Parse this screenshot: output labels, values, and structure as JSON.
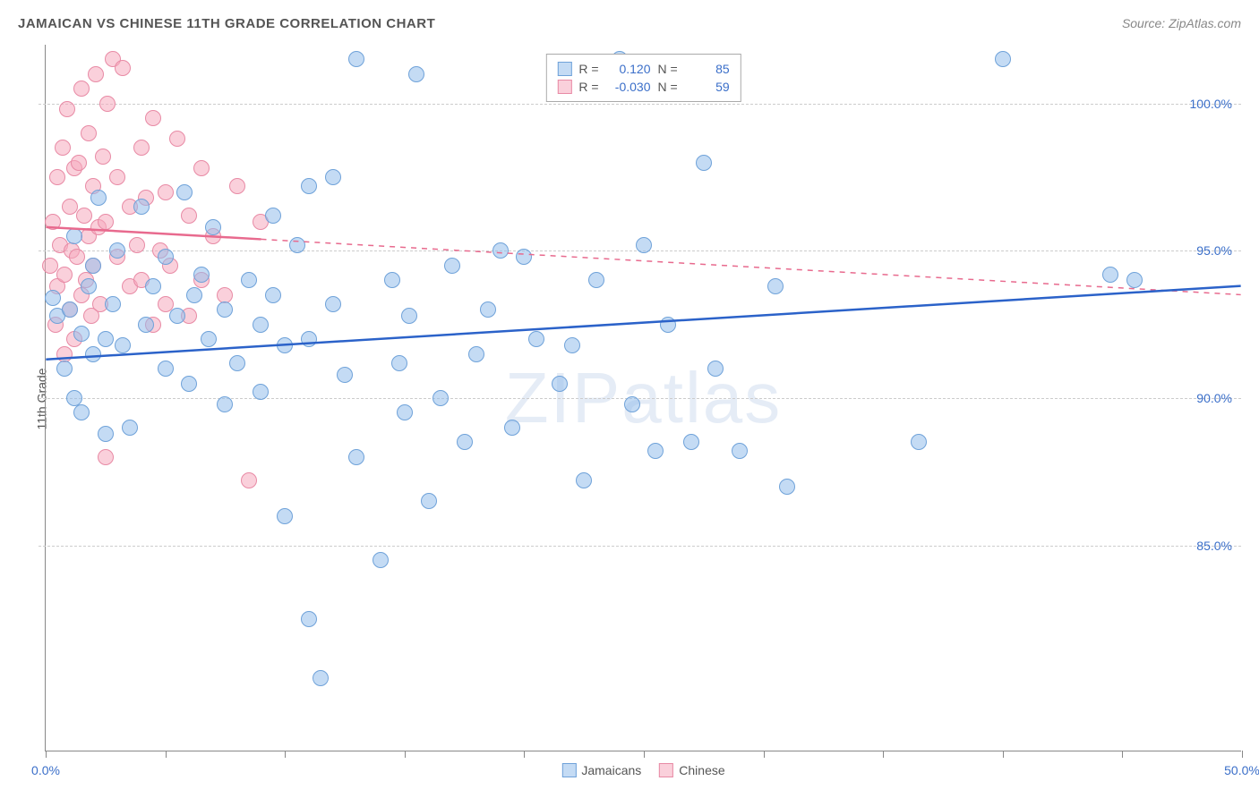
{
  "title": "JAMAICAN VS CHINESE 11TH GRADE CORRELATION CHART",
  "source": "Source: ZipAtlas.com",
  "ylabel": "11th Grade",
  "watermark": "ZIPatlas",
  "chart": {
    "type": "scatter",
    "xlim": [
      0,
      50
    ],
    "ylim": [
      78,
      102
    ],
    "xticks": [
      0,
      5,
      10,
      15,
      20,
      25,
      30,
      35,
      40,
      45,
      50
    ],
    "xtick_labels": {
      "0": "0.0%",
      "50": "50.0%"
    },
    "yticks": [
      85,
      90,
      95,
      100
    ],
    "ytick_labels": [
      "85.0%",
      "90.0%",
      "95.0%",
      "100.0%"
    ],
    "background_color": "#ffffff",
    "grid_color": "#cccccc",
    "axis_color": "#888888",
    "tick_label_color": "#3b6fc9",
    "point_radius": 9,
    "series": {
      "jamaicans": {
        "label": "Jamaicans",
        "fill_color": "rgba(147, 190, 235, 0.55)",
        "stroke_color": "#6fa2d9",
        "trend_color": "#2b62c9",
        "trend_solid_xmax": 50,
        "R": "0.120",
        "N": "85",
        "trend": {
          "y_at_x0": 91.3,
          "y_at_x50": 93.8
        },
        "points": [
          [
            0.3,
            93.4
          ],
          [
            0.5,
            92.8
          ],
          [
            0.8,
            91.0
          ],
          [
            1.0,
            93.0
          ],
          [
            1.2,
            90.0
          ],
          [
            1.2,
            95.5
          ],
          [
            1.5,
            92.2
          ],
          [
            1.5,
            89.5
          ],
          [
            1.8,
            93.8
          ],
          [
            2.0,
            91.5
          ],
          [
            2.0,
            94.5
          ],
          [
            2.2,
            96.8
          ],
          [
            2.5,
            92.0
          ],
          [
            2.5,
            88.8
          ],
          [
            2.8,
            93.2
          ],
          [
            3.0,
            95.0
          ],
          [
            3.2,
            91.8
          ],
          [
            3.5,
            89.0
          ],
          [
            4.0,
            96.5
          ],
          [
            4.2,
            92.5
          ],
          [
            4.5,
            93.8
          ],
          [
            5.0,
            94.8
          ],
          [
            5.0,
            91.0
          ],
          [
            5.5,
            92.8
          ],
          [
            5.8,
            97.0
          ],
          [
            6.0,
            90.5
          ],
          [
            6.2,
            93.5
          ],
          [
            6.5,
            94.2
          ],
          [
            6.8,
            92.0
          ],
          [
            7.0,
            95.8
          ],
          [
            7.5,
            93.0
          ],
          [
            7.5,
            89.8
          ],
          [
            8.0,
            91.2
          ],
          [
            8.5,
            94.0
          ],
          [
            9.0,
            92.5
          ],
          [
            9.0,
            90.2
          ],
          [
            9.5,
            93.5
          ],
          [
            9.5,
            96.2
          ],
          [
            10.0,
            91.8
          ],
          [
            10.0,
            86.0
          ],
          [
            10.5,
            95.2
          ],
          [
            11.0,
            82.5
          ],
          [
            11.0,
            92.0
          ],
          [
            11.0,
            97.2
          ],
          [
            11.5,
            80.5
          ],
          [
            12.0,
            97.5
          ],
          [
            12.0,
            93.2
          ],
          [
            13.0,
            88.0
          ],
          [
            12.5,
            90.8
          ],
          [
            13.0,
            101.5
          ],
          [
            14.0,
            84.5
          ],
          [
            14.5,
            94.0
          ],
          [
            14.8,
            91.2
          ],
          [
            15.0,
            89.5
          ],
          [
            15.2,
            92.8
          ],
          [
            15.5,
            101.0
          ],
          [
            16.0,
            86.5
          ],
          [
            16.5,
            90.0
          ],
          [
            17.0,
            94.5
          ],
          [
            17.5,
            88.5
          ],
          [
            18.0,
            91.5
          ],
          [
            18.5,
            93.0
          ],
          [
            19.0,
            95.0
          ],
          [
            19.5,
            89.0
          ],
          [
            20.0,
            94.8
          ],
          [
            20.5,
            92.0
          ],
          [
            21.5,
            90.5
          ],
          [
            22.0,
            91.8
          ],
          [
            22.5,
            87.2
          ],
          [
            23.0,
            94.0
          ],
          [
            24.0,
            101.5
          ],
          [
            24.5,
            89.8
          ],
          [
            25.0,
            95.2
          ],
          [
            25.5,
            88.2
          ],
          [
            26.0,
            92.5
          ],
          [
            27.0,
            88.5
          ],
          [
            27.5,
            98.0
          ],
          [
            28.0,
            91.0
          ],
          [
            29.0,
            88.2
          ],
          [
            30.5,
            93.8
          ],
          [
            31.0,
            87.0
          ],
          [
            36.5,
            88.5
          ],
          [
            40.0,
            101.5
          ],
          [
            44.5,
            94.2
          ],
          [
            45.5,
            94.0
          ]
        ]
      },
      "chinese": {
        "label": "Chinese",
        "fill_color": "rgba(245, 170, 190, 0.55)",
        "stroke_color": "#e88aa5",
        "trend_color": "#e86a8e",
        "trend_solid_xmax": 9,
        "R": "-0.030",
        "N": "59",
        "trend": {
          "y_at_x0": 95.8,
          "y_at_x50": 93.5
        },
        "points": [
          [
            0.2,
            94.5
          ],
          [
            0.3,
            96.0
          ],
          [
            0.4,
            92.5
          ],
          [
            0.5,
            97.5
          ],
          [
            0.5,
            93.8
          ],
          [
            0.6,
            95.2
          ],
          [
            0.7,
            98.5
          ],
          [
            0.8,
            91.5
          ],
          [
            0.8,
            94.2
          ],
          [
            0.9,
            99.8
          ],
          [
            1.0,
            93.0
          ],
          [
            1.0,
            96.5
          ],
          [
            1.1,
            95.0
          ],
          [
            1.2,
            97.8
          ],
          [
            1.2,
            92.0
          ],
          [
            1.3,
            94.8
          ],
          [
            1.4,
            98.0
          ],
          [
            1.5,
            93.5
          ],
          [
            1.5,
            100.5
          ],
          [
            1.6,
            96.2
          ],
          [
            1.7,
            94.0
          ],
          [
            1.8,
            99.0
          ],
          [
            1.8,
            95.5
          ],
          [
            1.9,
            92.8
          ],
          [
            2.0,
            97.2
          ],
          [
            2.0,
            94.5
          ],
          [
            2.1,
            101.0
          ],
          [
            2.2,
            95.8
          ],
          [
            2.3,
            93.2
          ],
          [
            2.4,
            98.2
          ],
          [
            2.5,
            96.0
          ],
          [
            2.5,
            88.0
          ],
          [
            2.6,
            100.0
          ],
          [
            2.8,
            101.5
          ],
          [
            3.0,
            94.8
          ],
          [
            3.0,
            97.5
          ],
          [
            3.2,
            101.2
          ],
          [
            3.5,
            96.5
          ],
          [
            3.5,
            93.8
          ],
          [
            3.8,
            95.2
          ],
          [
            4.0,
            98.5
          ],
          [
            4.0,
            94.0
          ],
          [
            4.2,
            96.8
          ],
          [
            4.5,
            92.5
          ],
          [
            4.5,
            99.5
          ],
          [
            4.8,
            95.0
          ],
          [
            5.0,
            93.2
          ],
          [
            5.0,
            97.0
          ],
          [
            5.2,
            94.5
          ],
          [
            5.5,
            98.8
          ],
          [
            6.0,
            92.8
          ],
          [
            6.0,
            96.2
          ],
          [
            6.5,
            94.0
          ],
          [
            6.5,
            97.8
          ],
          [
            7.0,
            95.5
          ],
          [
            7.5,
            93.5
          ],
          [
            8.0,
            97.2
          ],
          [
            8.5,
            87.2
          ],
          [
            9.0,
            96.0
          ]
        ]
      }
    }
  }
}
